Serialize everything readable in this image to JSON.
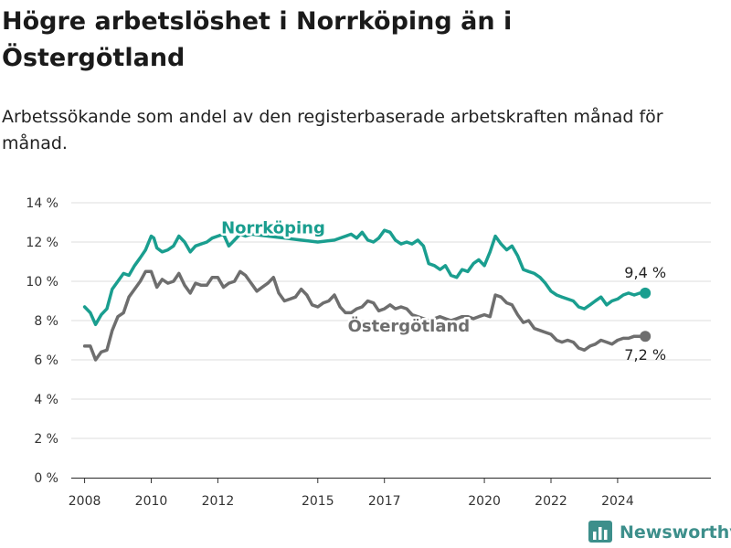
{
  "header": {
    "title": "Högre arbetslöshet i Norrköping än i Östergötland",
    "subtitle": "Arbetssökande som andel av den registerbaserade arbetskraften månad för månad."
  },
  "brand": {
    "name": "Newsworthy",
    "icon": "bar-chart-logo-icon"
  },
  "colors": {
    "norrkoping": "#1a9e8f",
    "ostergotland": "#6e6e6e",
    "grid": "#dcdcdc",
    "axis": "#333333",
    "brand": "#3d8f8b"
  },
  "chart_data": {
    "type": "line",
    "title": "Högre arbetslöshet i Norrköping än i Östergötland",
    "xlabel": "",
    "ylabel": "",
    "ylim": [
      0,
      14
    ],
    "xlim": [
      2007.6,
      2026.8
    ],
    "y_ticks": [
      0,
      2,
      4,
      6,
      8,
      10,
      12,
      14
    ],
    "y_tick_labels": [
      "0 %",
      "2 %",
      "4 %",
      "6 %",
      "8 %",
      "10 %",
      "12 %",
      "14 %"
    ],
    "x_ticks": [
      2008,
      2010,
      2012,
      2015,
      2017,
      2020,
      2022,
      2024
    ],
    "x_tick_labels": [
      "2008",
      "2010",
      "2012",
      "2015",
      "2017",
      "2020",
      "2022",
      "2024"
    ],
    "grid": "horizontal",
    "series": [
      {
        "name": "Norrköping",
        "color": "#1a9e8f",
        "end_label": "9,4 %",
        "x": [
          2008.0,
          2008.17,
          2008.33,
          2008.5,
          2008.67,
          2008.83,
          2009.0,
          2009.17,
          2009.33,
          2009.5,
          2009.67,
          2009.83,
          2010.0,
          2010.08,
          2010.17,
          2010.33,
          2010.5,
          2010.67,
          2010.83,
          2011.0,
          2011.17,
          2011.33,
          2011.5,
          2011.67,
          2011.83,
          2012.0,
          2012.17,
          2012.33,
          2012.5,
          2012.67,
          2012.83,
          2013.0,
          2013.5,
          2014.0,
          2014.5,
          2015.0,
          2015.5,
          2016.0,
          2016.17,
          2016.33,
          2016.5,
          2016.67,
          2016.83,
          2017.0,
          2017.17,
          2017.33,
          2017.5,
          2017.67,
          2017.83,
          2018.0,
          2018.17,
          2018.33,
          2018.5,
          2018.67,
          2018.83,
          2019.0,
          2019.17,
          2019.33,
          2019.5,
          2019.67,
          2019.83,
          2020.0,
          2020.17,
          2020.33,
          2020.5,
          2020.67,
          2020.83,
          2021.0,
          2021.17,
          2021.33,
          2021.5,
          2021.67,
          2021.83,
          2022.0,
          2022.17,
          2022.33,
          2022.5,
          2022.67,
          2022.83,
          2023.0,
          2023.17,
          2023.33,
          2023.5,
          2023.67,
          2023.83,
          2024.0,
          2024.17,
          2024.33,
          2024.5,
          2024.67,
          2024.83
        ],
        "values": [
          8.7,
          8.4,
          7.8,
          8.3,
          8.6,
          9.6,
          10.0,
          10.4,
          10.3,
          10.8,
          11.2,
          11.6,
          12.3,
          12.2,
          11.7,
          11.5,
          11.6,
          11.8,
          12.3,
          12.0,
          11.5,
          11.8,
          11.9,
          12.0,
          12.2,
          12.3,
          12.4,
          11.8,
          12.1,
          12.4,
          12.3,
          12.4,
          12.3,
          12.2,
          12.1,
          12.0,
          12.1,
          12.4,
          12.2,
          12.5,
          12.1,
          12.0,
          12.2,
          12.6,
          12.5,
          12.1,
          11.9,
          12.0,
          11.9,
          12.1,
          11.8,
          10.9,
          10.8,
          10.6,
          10.8,
          10.3,
          10.2,
          10.6,
          10.5,
          10.9,
          11.1,
          10.8,
          11.5,
          12.3,
          11.9,
          11.6,
          11.8,
          11.3,
          10.6,
          10.5,
          10.4,
          10.2,
          9.9,
          9.5,
          9.3,
          9.2,
          9.1,
          9.0,
          8.7,
          8.6,
          8.8,
          9.0,
          9.2,
          8.8,
          9.0,
          9.1,
          9.3,
          9.4,
          9.3,
          9.4,
          9.4
        ]
      },
      {
        "name": "Östergötland",
        "color": "#6e6e6e",
        "end_label": "7,2 %",
        "x": [
          2008.0,
          2008.17,
          2008.33,
          2008.5,
          2008.67,
          2008.83,
          2009.0,
          2009.17,
          2009.33,
          2009.5,
          2009.67,
          2009.83,
          2010.0,
          2010.17,
          2010.33,
          2010.5,
          2010.67,
          2010.83,
          2011.0,
          2011.17,
          2011.33,
          2011.5,
          2011.67,
          2011.83,
          2012.0,
          2012.17,
          2012.33,
          2012.5,
          2012.67,
          2012.83,
          2013.0,
          2013.17,
          2013.33,
          2013.5,
          2013.67,
          2013.83,
          2014.0,
          2014.17,
          2014.33,
          2014.5,
          2014.67,
          2014.83,
          2015.0,
          2015.17,
          2015.33,
          2015.5,
          2015.67,
          2015.83,
          2016.0,
          2016.17,
          2016.33,
          2016.5,
          2016.67,
          2016.83,
          2017.0,
          2017.17,
          2017.33,
          2017.5,
          2017.67,
          2017.83,
          2018.0,
          2018.17,
          2018.33,
          2018.5,
          2018.67,
          2018.83,
          2019.0,
          2019.17,
          2019.33,
          2019.5,
          2019.67,
          2019.83,
          2020.0,
          2020.17,
          2020.33,
          2020.5,
          2020.67,
          2020.83,
          2021.0,
          2021.17,
          2021.33,
          2021.5,
          2021.67,
          2021.83,
          2022.0,
          2022.17,
          2022.33,
          2022.5,
          2022.67,
          2022.83,
          2023.0,
          2023.17,
          2023.33,
          2023.5,
          2023.67,
          2023.83,
          2024.0,
          2024.17,
          2024.33,
          2024.5,
          2024.67,
          2024.83
        ],
        "values": [
          6.7,
          6.7,
          6.0,
          6.4,
          6.5,
          7.5,
          8.2,
          8.4,
          9.2,
          9.6,
          10.0,
          10.5,
          10.5,
          9.7,
          10.1,
          9.9,
          10.0,
          10.4,
          9.8,
          9.4,
          9.9,
          9.8,
          9.8,
          10.2,
          10.2,
          9.7,
          9.9,
          10.0,
          10.5,
          10.3,
          9.9,
          9.5,
          9.7,
          9.9,
          10.2,
          9.4,
          9.0,
          9.1,
          9.2,
          9.6,
          9.3,
          8.8,
          8.7,
          8.9,
          9.0,
          9.3,
          8.7,
          8.4,
          8.4,
          8.6,
          8.7,
          9.0,
          8.9,
          8.5,
          8.6,
          8.8,
          8.6,
          8.7,
          8.6,
          8.3,
          8.2,
          8.1,
          8.0,
          8.1,
          8.2,
          8.1,
          8.0,
          8.1,
          8.2,
          8.2,
          8.1,
          8.2,
          8.3,
          8.2,
          9.3,
          9.2,
          8.9,
          8.8,
          8.3,
          7.9,
          8.0,
          7.6,
          7.5,
          7.4,
          7.3,
          7.0,
          6.9,
          7.0,
          6.9,
          6.6,
          6.5,
          6.7,
          6.8,
          7.0,
          6.9,
          6.8,
          7.0,
          7.1,
          7.1,
          7.2,
          7.2,
          7.2
        ]
      }
    ]
  }
}
